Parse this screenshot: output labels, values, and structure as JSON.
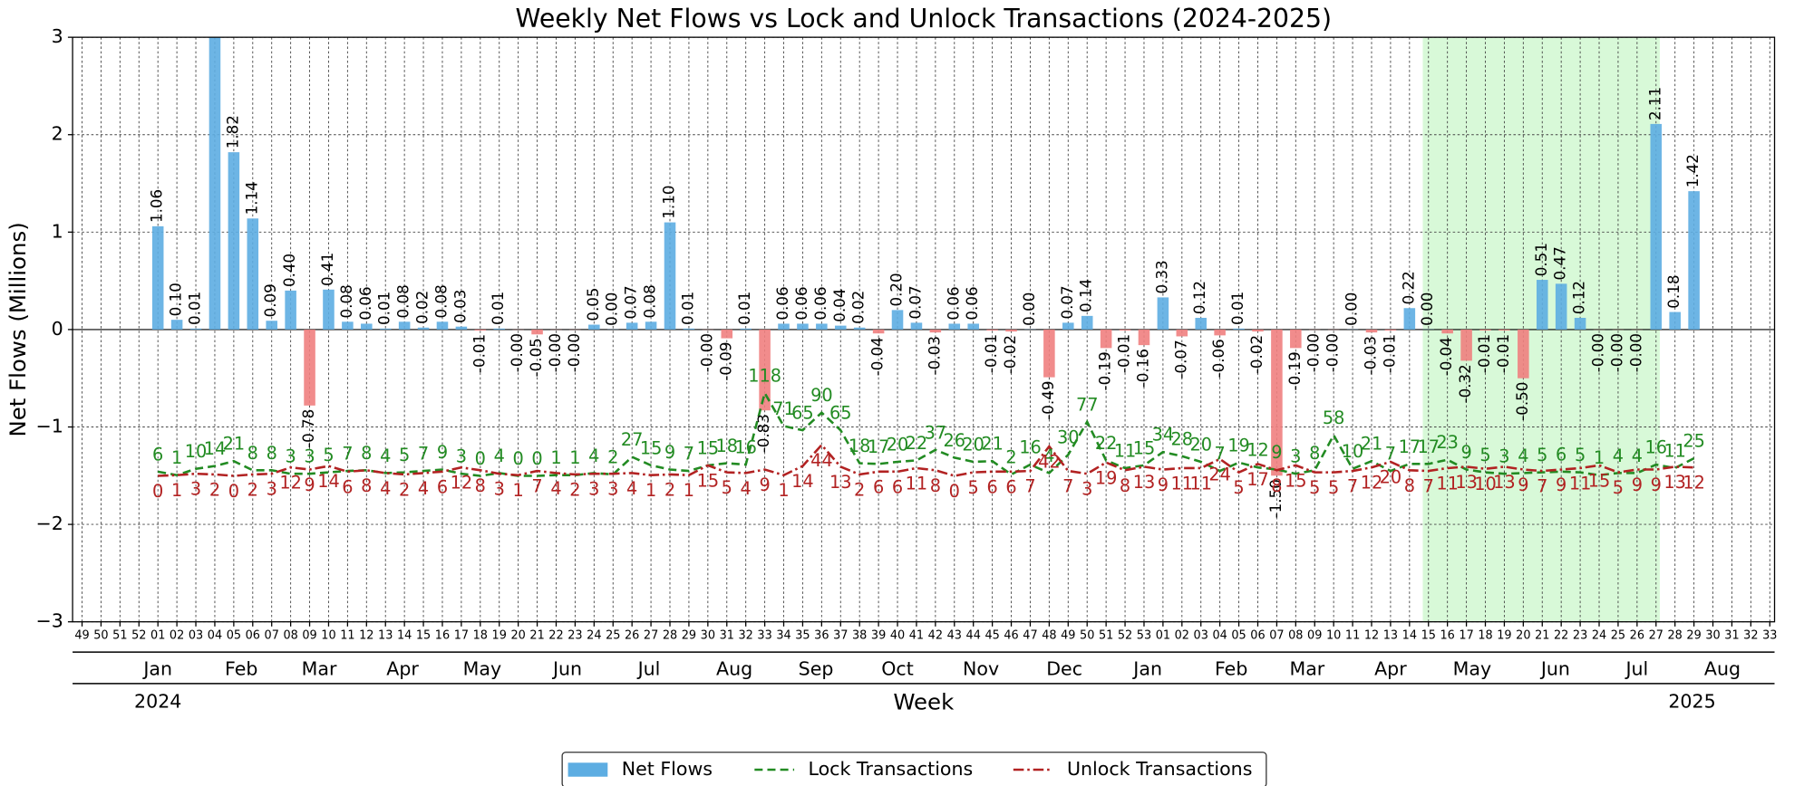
{
  "chart_data": {
    "type": "bar",
    "title": "Weekly Net Flows vs Lock and Unlock Transactions (2024-2025)",
    "y_label": "Net Flows (Millions)",
    "x_label": "Week",
    "categories": [
      "49",
      "50",
      "51",
      "52",
      "01",
      "02",
      "03",
      "04",
      "05",
      "06",
      "07",
      "08",
      "09",
      "10",
      "11",
      "12",
      "13",
      "14",
      "15",
      "16",
      "17",
      "18",
      "19",
      "20",
      "21",
      "22",
      "23",
      "24",
      "25",
      "26",
      "27",
      "28",
      "29",
      "30",
      "31",
      "32",
      "33",
      "34",
      "35",
      "36",
      "37",
      "38",
      "39",
      "40",
      "41",
      "42",
      "43",
      "44",
      "45",
      "46",
      "47",
      "48",
      "49",
      "50",
      "51",
      "52",
      "53",
      "01",
      "02",
      "03",
      "04",
      "05",
      "06",
      "07",
      "08",
      "09",
      "10",
      "11",
      "12",
      "13",
      "14",
      "15",
      "16",
      "17",
      "18",
      "19",
      "20",
      "21",
      "22",
      "23",
      "24",
      "25",
      "26",
      "27",
      "28",
      "29",
      "30",
      "31",
      "32",
      "33"
    ],
    "months": [
      {
        "label": "Jan",
        "x": 4
      },
      {
        "label": "Feb",
        "x": 8.4
      },
      {
        "label": "Mar",
        "x": 12.5
      },
      {
        "label": "Apr",
        "x": 16.9
      },
      {
        "label": "May",
        "x": 21.1
      },
      {
        "label": "Jun",
        "x": 25.6
      },
      {
        "label": "Jul",
        "x": 29.9
      },
      {
        "label": "Aug",
        "x": 34.4
      },
      {
        "label": "Sep",
        "x": 38.7
      },
      {
        "label": "Oct",
        "x": 43
      },
      {
        "label": "Nov",
        "x": 47.4
      },
      {
        "label": "Dec",
        "x": 51.8
      },
      {
        "label": "Jan",
        "x": 56.2
      },
      {
        "label": "Feb",
        "x": 60.6
      },
      {
        "label": "Mar",
        "x": 64.6
      },
      {
        "label": "Apr",
        "x": 69
      },
      {
        "label": "May",
        "x": 73.3
      },
      {
        "label": "Jun",
        "x": 77.7
      },
      {
        "label": "Jul",
        "x": 82
      },
      {
        "label": "Aug",
        "x": 86.5
      }
    ],
    "years": [
      {
        "label": "2024",
        "x": 4
      },
      {
        "label": "2025",
        "x": 84.9
      }
    ],
    "highlight_xrange": [
      70.7,
      83.2
    ],
    "highlight_color": "#90ee90",
    "xlim": [
      -0.5,
      89.25
    ],
    "ylim": [
      -3,
      3
    ],
    "yticks": [
      {
        "value": -3,
        "label": "−3"
      },
      {
        "value": -2,
        "label": "−2"
      },
      {
        "value": -1,
        "label": "−1"
      },
      0,
      1,
      2,
      3
    ],
    "y2lim": [
      -208,
      625
    ],
    "grid": true,
    "series": [
      {
        "name": "Net Flows",
        "type": "bar",
        "color": "#5dade2",
        "negative_color": "#f08080",
        "values": [
          null,
          null,
          null,
          null,
          1.06,
          0.1,
          0.01,
          3.3,
          1.82,
          1.14,
          0.09,
          0.4,
          -0.78,
          0.41,
          0.08,
          0.06,
          0.01,
          0.08,
          0.02,
          0.08,
          0.03,
          -0.01,
          0.01,
          -0.002,
          -0.05,
          -0.002,
          -0.002,
          0.05,
          0.002,
          0.07,
          0.08,
          1.1,
          0.01,
          -0.002,
          -0.09,
          0.01,
          -0.83,
          0.06,
          0.06,
          0.06,
          0.04,
          0.02,
          -0.04,
          0.2,
          0.07,
          -0.03,
          0.06,
          0.06,
          -0.01,
          -0.02,
          0.002,
          -0.49,
          0.07,
          0.14,
          -0.19,
          -0.01,
          -0.16,
          0.33,
          -0.07,
          0.12,
          -0.06,
          0.01,
          -0.02,
          -1.5,
          -0.19,
          -0.002,
          -0.002,
          0.002,
          -0.03,
          -0.01,
          0.22,
          0.002,
          -0.04,
          -0.32,
          -0.01,
          -0.01,
          -0.5,
          0.51,
          0.47,
          0.12,
          -0.002,
          -0.002,
          -0.002,
          2.11,
          0.18,
          1.42,
          null,
          null,
          null,
          null
        ],
        "value_labels": [
          null,
          null,
          null,
          null,
          "1.06",
          "0.10",
          "0.01",
          null,
          "1.82",
          "1.14",
          "0.09",
          "0.40",
          "-0.78",
          "0.41",
          "0.08",
          "0.06",
          "0.01",
          "0.08",
          "0.02",
          "0.08",
          "0.03",
          "-0.01",
          "0.01",
          "-0.00",
          "-0.05",
          "-0.00",
          "-0.00",
          "0.05",
          "0.00",
          "0.07",
          "0.08",
          "1.10",
          "0.01",
          "-0.00",
          "-0.09",
          "0.01",
          "-0.83",
          "0.06",
          "0.06",
          "0.06",
          "0.04",
          "0.02",
          "-0.04",
          "0.20",
          "0.07",
          "-0.03",
          "0.06",
          "0.06",
          "-0.01",
          "-0.02",
          "0.00",
          "-0.49",
          "0.07",
          "0.14",
          "-0.19",
          "-0.01",
          "-0.16",
          "0.33",
          "-0.07",
          "0.12",
          "-0.06",
          "0.01",
          "-0.02",
          "-1.50",
          "-0.19",
          "-0.00",
          "-0.00",
          "0.00",
          "-0.03",
          "-0.01",
          "0.22",
          "0.00",
          "-0.04",
          "-0.32",
          "-0.01",
          "-0.01",
          "-0.50",
          "0.51",
          "0.47",
          "0.12",
          "-0.00",
          "-0.00",
          "-0.00",
          "2.11",
          "0.18",
          "1.42",
          null,
          null,
          null,
          null
        ]
      },
      {
        "name": "Lock Transactions",
        "type": "line",
        "axis": "y2",
        "color": "#228b22",
        "dash": "dashed",
        "values": [
          null,
          null,
          null,
          null,
          6,
          1,
          10,
          14,
          21,
          8,
          8,
          3,
          3,
          5,
          7,
          8,
          4,
          5,
          7,
          9,
          3,
          0,
          4,
          0,
          0,
          1,
          1,
          4,
          2,
          27,
          15,
          9,
          7,
          15,
          18,
          16,
          118,
          71,
          65,
          90,
          65,
          18,
          17,
          20,
          22,
          37,
          26,
          20,
          21,
          2,
          16,
          4,
          30,
          77,
          22,
          11,
          15,
          34,
          28,
          20,
          7,
          19,
          12,
          9,
          3,
          8,
          58,
          10,
          21,
          7,
          17,
          17,
          23,
          9,
          5,
          3,
          4,
          5,
          6,
          5,
          1,
          4,
          4,
          16,
          11,
          25,
          null,
          null,
          null,
          null
        ]
      },
      {
        "name": "Unlock Transactions",
        "type": "line",
        "axis": "y2",
        "color": "#b22222",
        "dash": "dashdot",
        "values": [
          null,
          null,
          null,
          null,
          0,
          1,
          3,
          2,
          0,
          2,
          3,
          12,
          9,
          14,
          6,
          8,
          4,
          2,
          4,
          6,
          12,
          8,
          3,
          1,
          7,
          4,
          2,
          3,
          3,
          4,
          1,
          2,
          1,
          15,
          5,
          4,
          9,
          1,
          14,
          44,
          13,
          2,
          6,
          6,
          11,
          8,
          0,
          5,
          6,
          6,
          7,
          42,
          7,
          3,
          19,
          8,
          13,
          9,
          11,
          11,
          24,
          5,
          17,
          8,
          15,
          5,
          5,
          7,
          12,
          20,
          8,
          7,
          11,
          13,
          10,
          13,
          9,
          7,
          9,
          11,
          15,
          5,
          9,
          9,
          13,
          12,
          null,
          null,
          null,
          null
        ]
      }
    ]
  }
}
